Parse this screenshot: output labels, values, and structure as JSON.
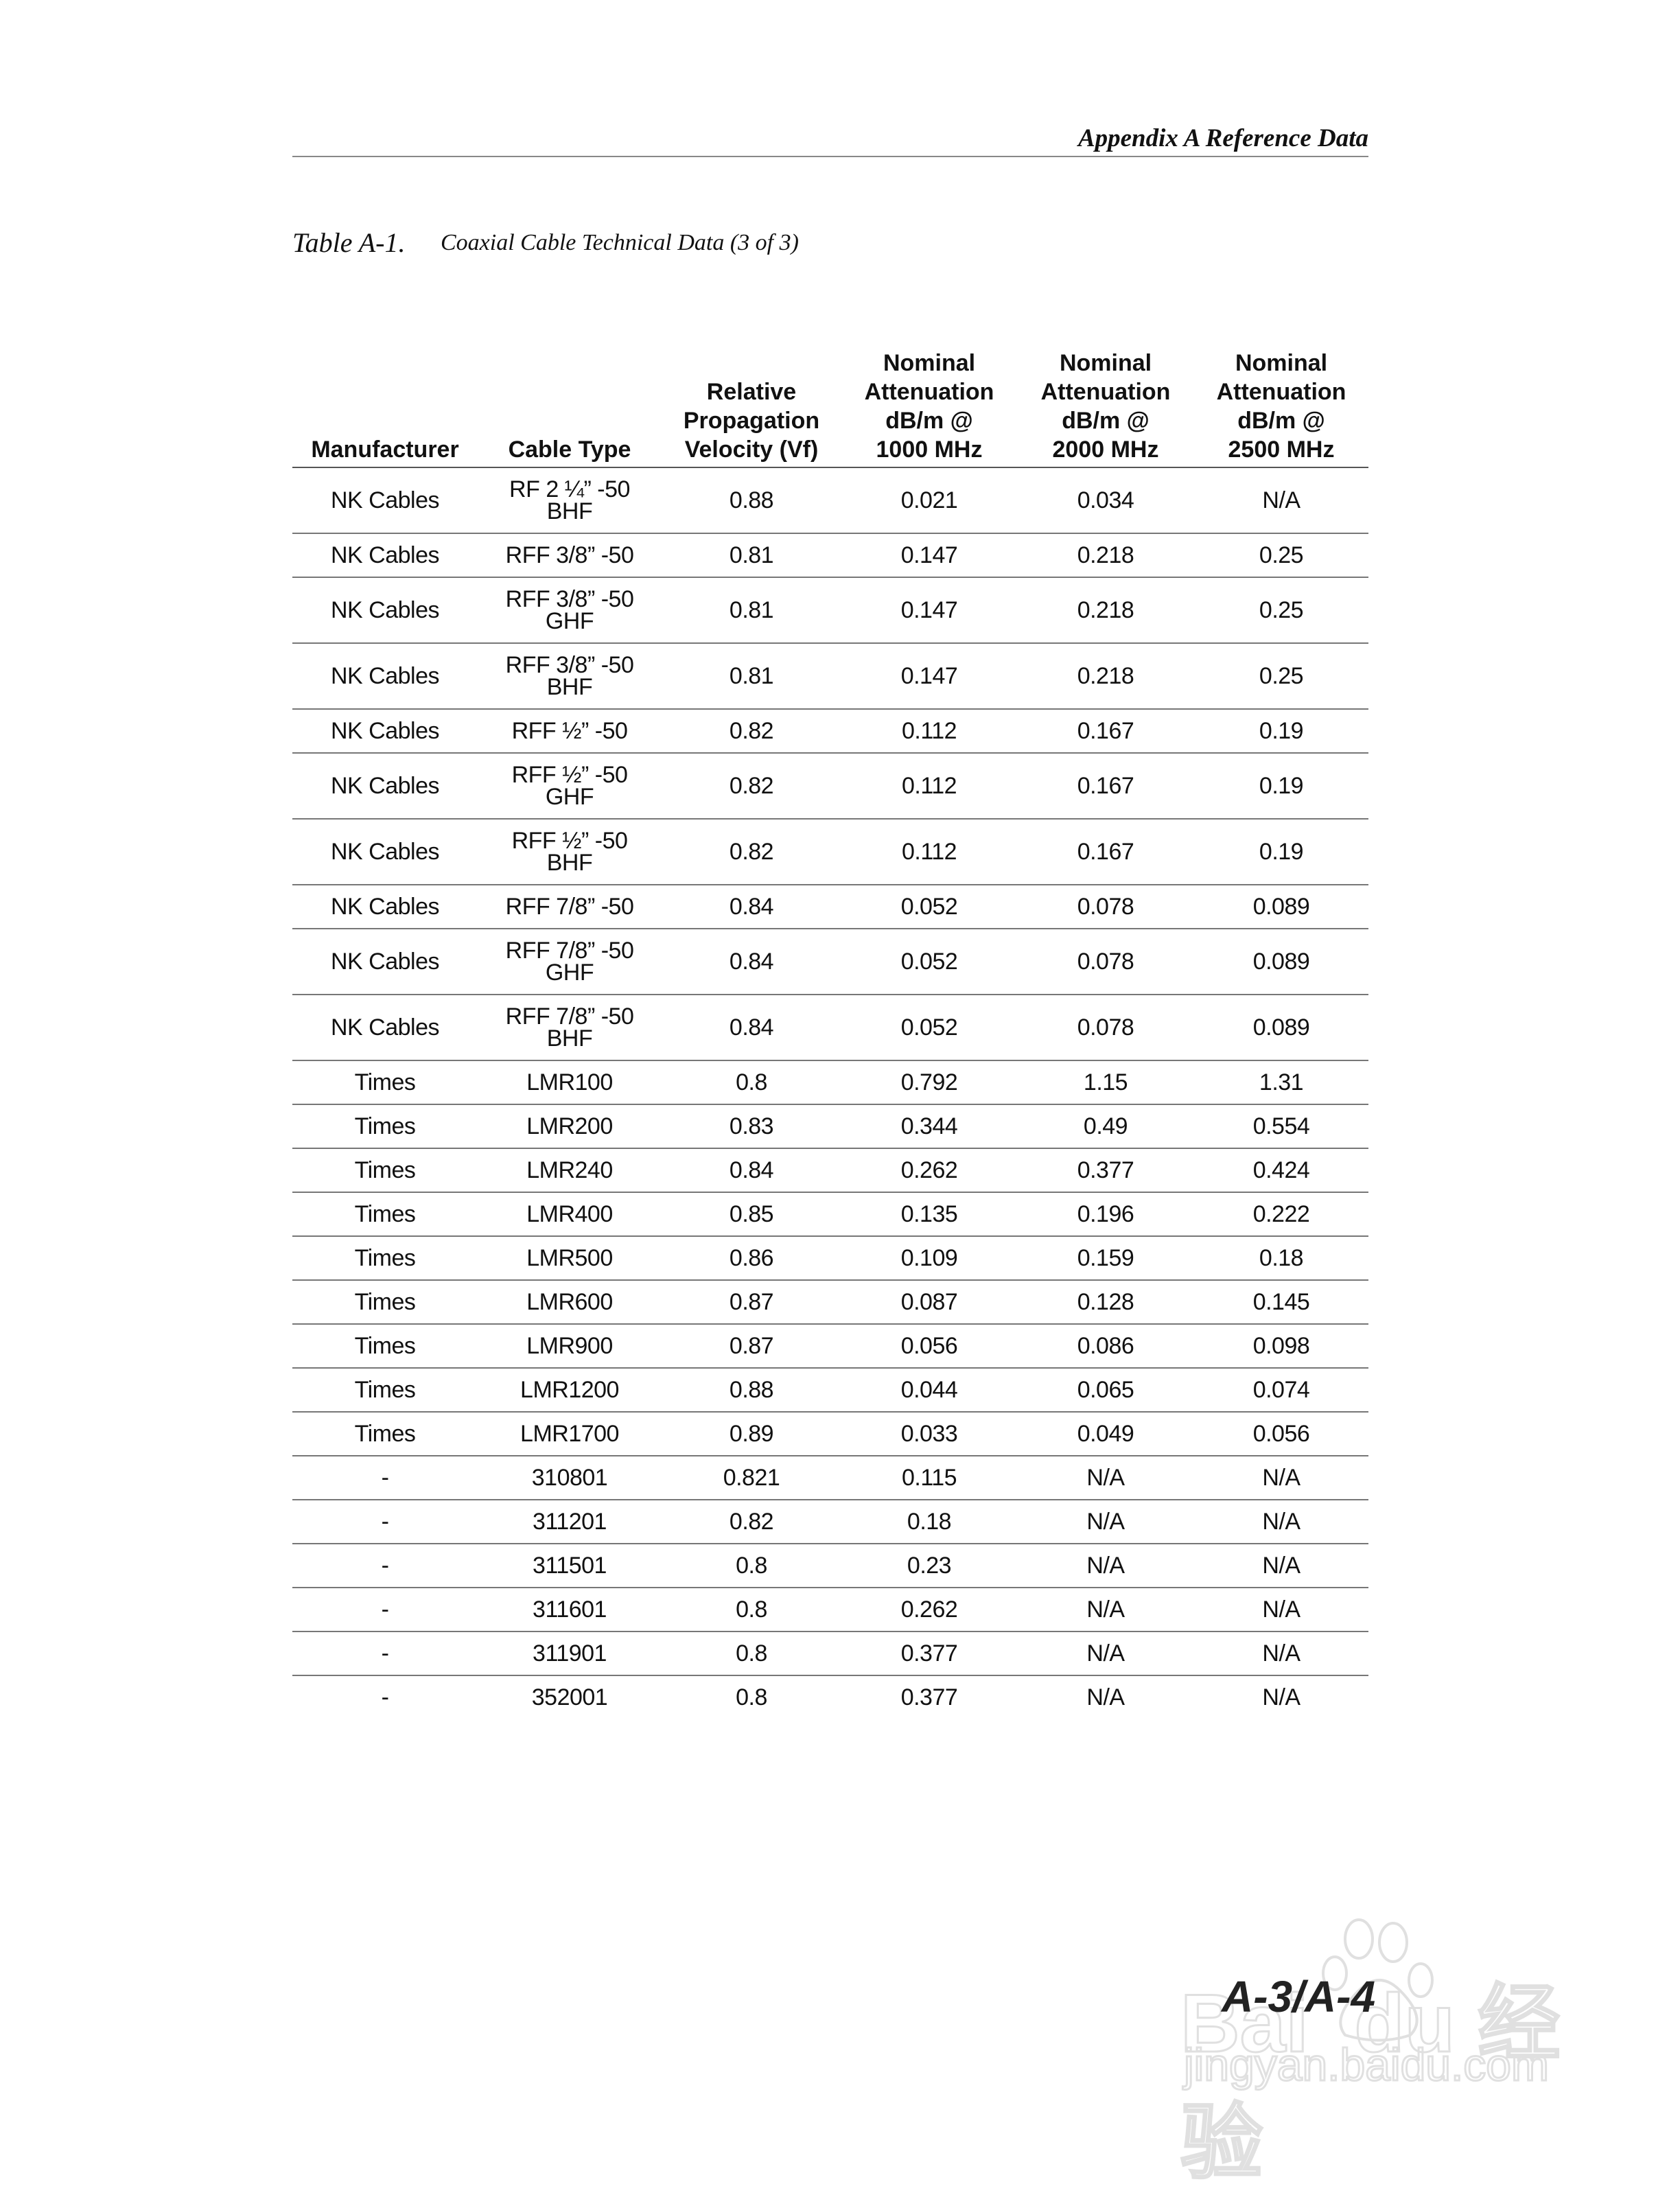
{
  "running_head": "Appendix A Reference Data",
  "caption": {
    "number": "Table A-1.",
    "title": "Coaxial Cable Technical Data (3 of 3)"
  },
  "table": {
    "headers": [
      "Manufacturer",
      "Cable Type",
      "Relative\nPropagation\nVelocity (Vf)",
      "Nominal\nAttenuation\ndB/m @\n1000 MHz",
      "Nominal\nAttenuation\ndB/m @\n2000 MHz",
      "Nominal\nAttenuation\ndB/m @\n2500 MHz"
    ],
    "rows": [
      [
        "NK Cables",
        "RF 2 ¼” -50\nBHF",
        "0.88",
        "0.021",
        "0.034",
        "N/A"
      ],
      [
        "NK Cables",
        "RFF 3/8” -50",
        "0.81",
        "0.147",
        "0.218",
        "0.25"
      ],
      [
        "NK Cables",
        "RFF 3/8” -50\nGHF",
        "0.81",
        "0.147",
        "0.218",
        "0.25"
      ],
      [
        "NK Cables",
        "RFF 3/8” -50\nBHF",
        "0.81",
        "0.147",
        "0.218",
        "0.25"
      ],
      [
        "NK Cables",
        "RFF ½” -50",
        "0.82",
        "0.112",
        "0.167",
        "0.19"
      ],
      [
        "NK Cables",
        "RFF ½” -50\nGHF",
        "0.82",
        "0.112",
        "0.167",
        "0.19"
      ],
      [
        "NK Cables",
        "RFF ½” -50\nBHF",
        "0.82",
        "0.112",
        "0.167",
        "0.19"
      ],
      [
        "NK Cables",
        "RFF 7/8” -50",
        "0.84",
        "0.052",
        "0.078",
        "0.089"
      ],
      [
        "NK Cables",
        "RFF 7/8” -50\nGHF",
        "0.84",
        "0.052",
        "0.078",
        "0.089"
      ],
      [
        "NK Cables",
        "RFF 7/8” -50\nBHF",
        "0.84",
        "0.052",
        "0.078",
        "0.089"
      ],
      [
        "Times",
        "LMR100",
        "0.8",
        "0.792",
        "1.15",
        "1.31"
      ],
      [
        "Times",
        "LMR200",
        "0.83",
        "0.344",
        "0.49",
        "0.554"
      ],
      [
        "Times",
        "LMR240",
        "0.84",
        "0.262",
        "0.377",
        "0.424"
      ],
      [
        "Times",
        "LMR400",
        "0.85",
        "0.135",
        "0.196",
        "0.222"
      ],
      [
        "Times",
        "LMR500",
        "0.86",
        "0.109",
        "0.159",
        "0.18"
      ],
      [
        "Times",
        "LMR600",
        "0.87",
        "0.087",
        "0.128",
        "0.145"
      ],
      [
        "Times",
        "LMR900",
        "0.87",
        "0.056",
        "0.086",
        "0.098"
      ],
      [
        "Times",
        "LMR1200",
        "0.88",
        "0.044",
        "0.065",
        "0.074"
      ],
      [
        "Times",
        "LMR1700",
        "0.89",
        "0.033",
        "0.049",
        "0.056"
      ],
      [
        "-",
        "310801",
        "0.821",
        "0.115",
        "N/A",
        "N/A"
      ],
      [
        "-",
        "311201",
        "0.82",
        "0.18",
        "N/A",
        "N/A"
      ],
      [
        "-",
        "311501",
        "0.8",
        "0.23",
        "N/A",
        "N/A"
      ],
      [
        "-",
        "311601",
        "0.8",
        "0.262",
        "N/A",
        "N/A"
      ],
      [
        "-",
        "311901",
        "0.8",
        "0.377",
        "N/A",
        "N/A"
      ],
      [
        "-",
        "352001",
        "0.8",
        "0.377",
        "N/A",
        "N/A"
      ]
    ]
  },
  "page_number": "A-3/A-4",
  "watermark": {
    "logo": "Bai du 经验",
    "url": "jingyan.baidu.com"
  }
}
